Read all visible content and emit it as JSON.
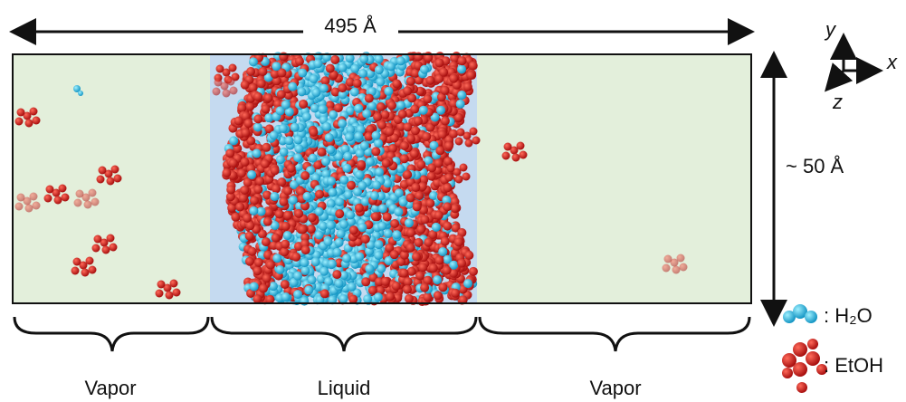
{
  "dimensions": {
    "length_label": "495 Å",
    "height_label": "~ 50 Å"
  },
  "axes": {
    "y": "y",
    "x": "x",
    "z": "z"
  },
  "regions": [
    "Vapor",
    "Liquid",
    "Vapor"
  ],
  "legend": {
    "water": ": H₂O",
    "ethanol": ": EtOH"
  }
}
